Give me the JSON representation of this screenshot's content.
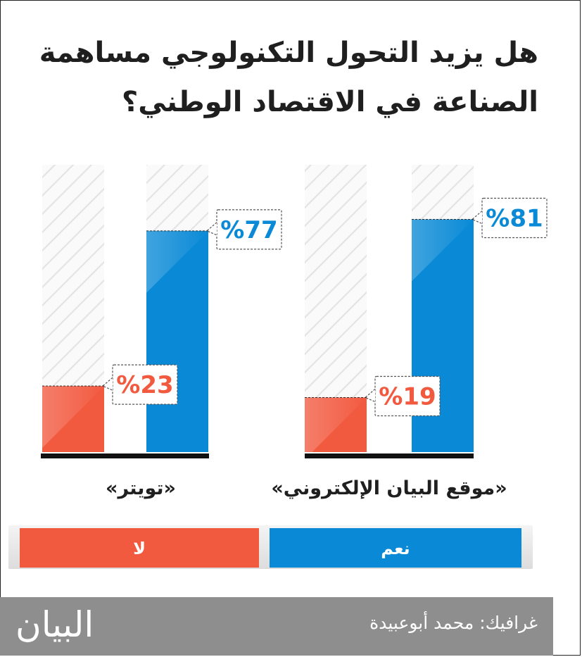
{
  "title": "هل يزيد التحول التكنولوجي مساهمة الصناعة في الاقتصاد الوطني؟",
  "colors": {
    "yes": "#0a8ad6",
    "no": "#f25a40",
    "hatch": "#e4e4e4",
    "axis": "#111111"
  },
  "chart_data": {
    "type": "bar",
    "title": "هل يزيد التحول التكنولوجي مساهمة الصناعة في الاقتصاد الوطني؟",
    "categories": [
      "«موقع البيان الإلكتروني»",
      "«تويتر»"
    ],
    "series": [
      {
        "name": "نعم",
        "values": [
          81,
          77
        ],
        "labels": [
          "%81",
          "%77"
        ]
      },
      {
        "name": "لا",
        "values": [
          19,
          23
        ],
        "labels": [
          "%19",
          "%23"
        ]
      }
    ],
    "ylim": [
      0,
      100
    ],
    "legend": "bottom",
    "grid": false
  },
  "legend": {
    "yes_label": "نعم",
    "no_label": "لا"
  },
  "footer": {
    "credit": "غرافيك: محمد أبوعبيدة",
    "logo": "البيان"
  }
}
